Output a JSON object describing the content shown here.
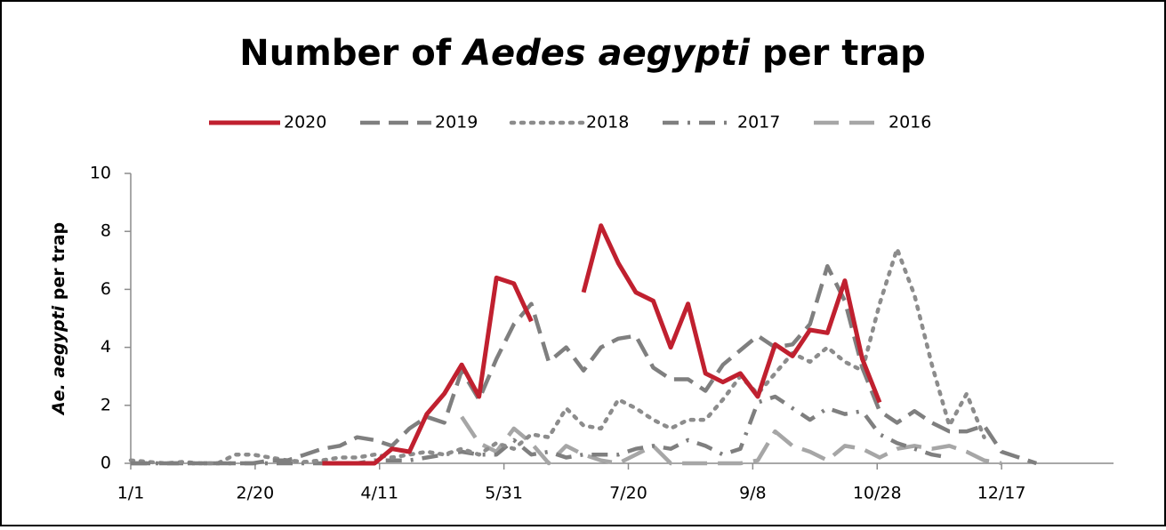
{
  "chart_data": {
    "type": "line",
    "title": [
      {
        "text": "Number of ",
        "italic": false
      },
      {
        "text": "Aedes aegypti",
        "italic": true
      },
      {
        "text": " per trap",
        "italic": false
      }
    ],
    "y_label": [
      {
        "text": "Ae. aegypti",
        "italic": true
      },
      {
        "text": " per trap",
        "italic": false
      }
    ],
    "x": [
      1,
      8,
      15,
      22,
      29,
      36,
      43,
      50,
      57,
      64,
      71,
      78,
      85,
      92,
      99,
      106,
      113,
      120,
      127,
      134,
      141,
      148,
      155,
      162,
      169,
      176,
      183,
      190,
      197,
      204,
      211,
      218,
      225,
      232,
      239,
      246,
      253,
      260,
      267,
      274,
      281,
      288,
      295,
      302,
      309,
      316,
      323,
      330,
      337,
      344,
      351,
      358,
      365
    ],
    "xlim": [
      1,
      396
    ],
    "xticks": [
      {
        "value": 1,
        "label": "1/1"
      },
      {
        "value": 51,
        "label": "2/20"
      },
      {
        "value": 101,
        "label": "4/11"
      },
      {
        "value": 151,
        "label": "5/31"
      },
      {
        "value": 201,
        "label": "7/20"
      },
      {
        "value": 251,
        "label": "9/8"
      },
      {
        "value": 301,
        "label": "10/28"
      },
      {
        "value": 351,
        "label": "12/17"
      }
    ],
    "ylim": [
      0,
      10
    ],
    "yticks": [
      0,
      2,
      4,
      6,
      8,
      10
    ],
    "grid": false,
    "legend": "top",
    "series": [
      {
        "name": "2020",
        "color": "#c0202f",
        "dash": "solid",
        "values": [
          null,
          null,
          null,
          null,
          null,
          null,
          null,
          null,
          null,
          null,
          null,
          0,
          0,
          0,
          0,
          0.5,
          0.4,
          1.7,
          2.4,
          3.4,
          2.3,
          6.4,
          6.2,
          4.9,
          null,
          null,
          5.9,
          8.2,
          6.9,
          5.9,
          5.6,
          4.0,
          5.5,
          3.1,
          2.8,
          3.1,
          2.3,
          4.1,
          3.7,
          4.6,
          4.5,
          6.3,
          3.6,
          2.1,
          null,
          null,
          null,
          null,
          null,
          null,
          null,
          null,
          null
        ]
      },
      {
        "name": "2019",
        "color": "#7f7f7f",
        "dash": "dash",
        "values": [
          0,
          0,
          0,
          0,
          0,
          0,
          0,
          0,
          0.1,
          0.1,
          0.3,
          0.5,
          0.6,
          0.9,
          0.8,
          0.6,
          1.2,
          1.6,
          1.4,
          3.2,
          2.2,
          3.6,
          4.8,
          5.5,
          3.5,
          4.0,
          3.2,
          4.0,
          4.3,
          4.4,
          3.3,
          2.9,
          2.9,
          2.5,
          3.4,
          3.9,
          4.4,
          4.0,
          4.1,
          4.8,
          6.8,
          5.6,
          3.3,
          1.8,
          1.4,
          1.8,
          1.4,
          1.1,
          1.1,
          1.3,
          0.4,
          0.2,
          0
        ]
      },
      {
        "name": "2018",
        "color": "#8c8c8c",
        "dash": "dot",
        "values": [
          0.1,
          0.05,
          0,
          0.05,
          0,
          0,
          0.3,
          0.3,
          0.2,
          0.1,
          0.05,
          0.1,
          0.2,
          0.2,
          0.3,
          0.2,
          0.3,
          0.4,
          0.3,
          0.5,
          0.3,
          0.7,
          0.5,
          1.0,
          0.9,
          1.9,
          1.3,
          1.2,
          2.2,
          1.9,
          1.5,
          1.2,
          1.5,
          1.5,
          2.2,
          3.0,
          2.4,
          3.1,
          3.8,
          3.5,
          4.0,
          3.5,
          3.2,
          5.5,
          7.4,
          5.8,
          3.4,
          1.3,
          2.4,
          0.9,
          null,
          null,
          null
        ]
      },
      {
        "name": "2017",
        "color": "#7f7f7f",
        "dash": "dashdot",
        "values": [
          0,
          0,
          0,
          0,
          0,
          0,
          0,
          0,
          0,
          0,
          0,
          0,
          0,
          0,
          0.1,
          0.1,
          0.1,
          0.2,
          0.3,
          0.4,
          0.3,
          0.3,
          0.8,
          0.3,
          0.4,
          0.2,
          0.3,
          0.3,
          0.3,
          0.5,
          0.6,
          0.5,
          0.8,
          0.6,
          0.3,
          0.5,
          2.1,
          2.3,
          1.9,
          1.5,
          1.9,
          1.7,
          1.8,
          1.0,
          0.7,
          0.5,
          0.3,
          0.2,
          null,
          null,
          null,
          null,
          null
        ]
      },
      {
        "name": "2016",
        "color": "#a6a6a6",
        "dash": "longdash",
        "values": [
          null,
          null,
          null,
          null,
          null,
          null,
          null,
          null,
          null,
          null,
          null,
          null,
          null,
          null,
          null,
          null,
          null,
          null,
          null,
          1.6,
          0.7,
          0.4,
          1.2,
          0.7,
          0,
          0.6,
          0.3,
          0.1,
          0,
          0.3,
          0.6,
          0,
          0,
          0,
          0,
          0,
          0.1,
          1.1,
          0.6,
          0.4,
          0.1,
          0.6,
          0.5,
          0.2,
          0.5,
          0.6,
          0.5,
          0.6,
          0.4,
          0.1,
          0,
          null,
          null
        ]
      }
    ]
  }
}
